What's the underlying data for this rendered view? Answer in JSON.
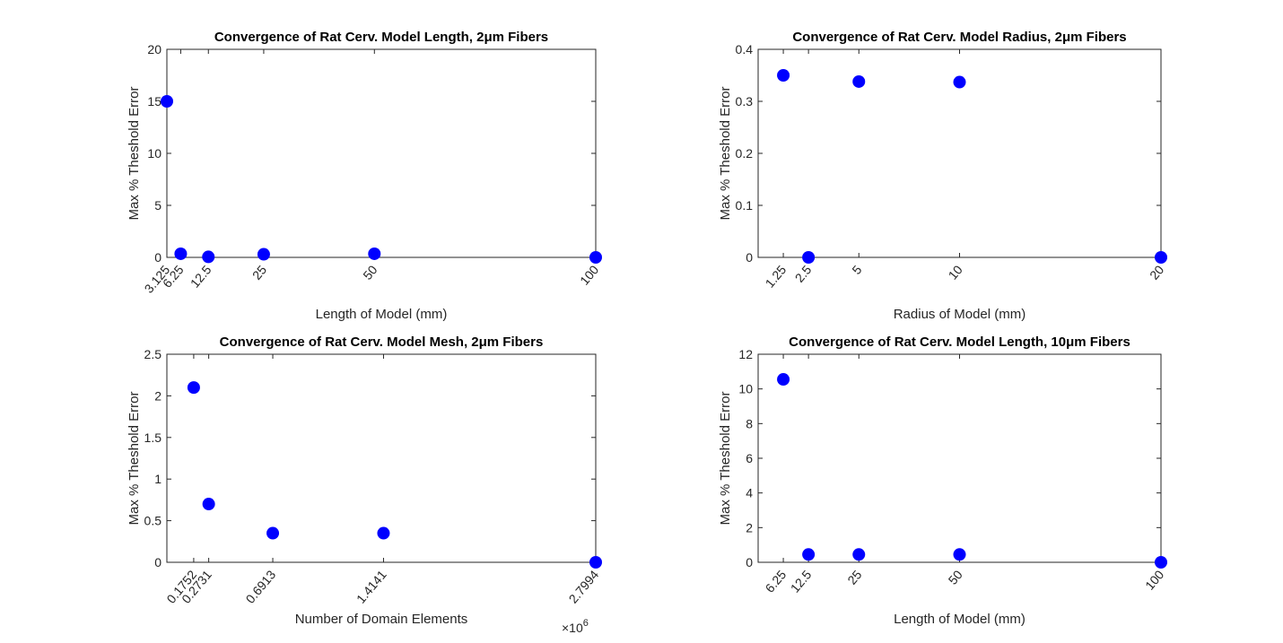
{
  "chart_data": [
    {
      "type": "scatter",
      "title": "Convergence of Rat Cerv. Model Length, 2μm Fibers",
      "xlabel": "Length of Model (mm)",
      "ylabel": "Max % Theshold Error",
      "xlim": [
        3.125,
        100
      ],
      "ylim": [
        0,
        20
      ],
      "yticks": [
        0,
        5,
        10,
        15,
        20
      ],
      "xticks": [
        3.125,
        6.25,
        12.5,
        25,
        50,
        100
      ],
      "xtick_labels": [
        "3.125",
        "6.25",
        "12.5",
        "25",
        "50",
        "100"
      ],
      "x": [
        3.125,
        6.25,
        12.5,
        25,
        50,
        100
      ],
      "y": [
        15.0,
        0.35,
        0.05,
        0.3,
        0.35,
        0.0
      ],
      "marker_color": "#0000ff",
      "grid": false
    },
    {
      "type": "scatter",
      "title": "Convergence of Rat Cerv. Model Radius, 2μm Fibers",
      "xlabel": "Radius of Model (mm)",
      "ylabel": "Max % Theshold Error",
      "xlim": [
        0,
        20
      ],
      "ylim": [
        0,
        0.4
      ],
      "yticks": [
        0,
        0.1,
        0.2,
        0.3,
        0.4
      ],
      "xticks": [
        1.25,
        2.5,
        5,
        10,
        20
      ],
      "xtick_labels": [
        "1.25",
        "2.5",
        "5",
        "10",
        "20"
      ],
      "x": [
        1.25,
        2.5,
        5,
        10,
        20
      ],
      "y": [
        0.35,
        0.0,
        0.338,
        0.337,
        0.0
      ],
      "marker_color": "#0000ff",
      "grid": false
    },
    {
      "type": "scatter",
      "title": "Convergence of Rat Cerv. Model Mesh, 2μm Fibers",
      "xlabel": "Number of Domain Elements",
      "ylabel": "Max % Theshold Error",
      "x_multiplier_label": "×10",
      "x_multiplier_exponent": "6",
      "xlim": [
        0,
        2.7994
      ],
      "ylim": [
        0,
        2.5
      ],
      "yticks": [
        0,
        0.5,
        1,
        1.5,
        2,
        2.5
      ],
      "xticks": [
        0.1752,
        0.2731,
        0.6913,
        1.4141,
        2.7994
      ],
      "xtick_labels": [
        "0.1752",
        "0.2731",
        "0.6913",
        "1.4141",
        "2.7994"
      ],
      "x": [
        0.1752,
        0.2731,
        0.6913,
        1.4141,
        2.7994
      ],
      "y": [
        2.1,
        0.7,
        0.35,
        0.35,
        0.0
      ],
      "marker_color": "#0000ff",
      "grid": false
    },
    {
      "type": "scatter",
      "title": "Convergence of Rat Cerv. Model Length, 10μm Fibers",
      "xlabel": "Length of Model (mm)",
      "ylabel": "Max % Theshold Error",
      "xlim": [
        0,
        100
      ],
      "ylim": [
        0,
        12
      ],
      "yticks": [
        0,
        2,
        4,
        6,
        8,
        10,
        12
      ],
      "xticks": [
        6.25,
        12.5,
        25,
        50,
        100
      ],
      "xtick_labels": [
        "6.25",
        "12.5",
        "25",
        "50",
        "100"
      ],
      "x": [
        6.25,
        12.5,
        25,
        50,
        100
      ],
      "y": [
        10.55,
        0.45,
        0.45,
        0.45,
        0.0
      ],
      "marker_color": "#0000ff",
      "grid": false
    }
  ]
}
